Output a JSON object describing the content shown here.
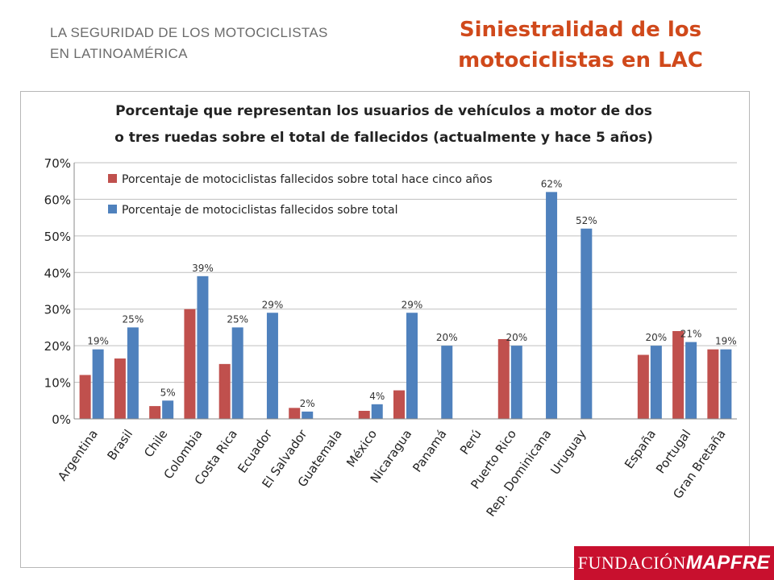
{
  "header": {
    "subtitle_line1": "LA SEGURIDAD DE LOS MOTOCICLISTAS",
    "subtitle_line2": "EN LATINOAMÉRICA",
    "title_line1": "Siniestralidad de los",
    "title_line2": "motociclistas en LAC"
  },
  "logo": {
    "part1": "FUNDACIÓN",
    "part2": "MAPFRE"
  },
  "colors": {
    "red": "#c0504d",
    "blue": "#4f81bd",
    "title": "#d0491b"
  },
  "chart_data": {
    "type": "bar",
    "title_line1": "Porcentaje que representan los usuarios de vehículos a motor de dos",
    "title_line2": "o tres ruedas sobre el total de fallecidos (actualmente y hace 5 años)",
    "xlabel": "",
    "ylabel": "",
    "ylim": [
      0,
      70
    ],
    "yticks": [
      "0%",
      "10%",
      "20%",
      "30%",
      "40%",
      "50%",
      "60%",
      "70%"
    ],
    "grid": true,
    "legend_position": "top-left",
    "categories": [
      "Argentina",
      "Brasil",
      "Chile",
      "Colombia",
      "Costa Rica",
      "Ecuador",
      "El Salvador",
      "Guatemala",
      "México",
      "Nicaragua",
      "Panamá",
      "Perú",
      "Puerto Rico",
      "Rep. Dominicana",
      "Uruguay",
      "",
      "España",
      "Portugal",
      "Gran Bretaña"
    ],
    "series": [
      {
        "name": "Porcentaje de motociclistas fallecidos sobre total hace cinco años",
        "color": "#c0504d",
        "values": [
          12,
          16.5,
          3.5,
          30,
          15,
          null,
          3,
          null,
          2.2,
          7.8,
          null,
          null,
          21.8,
          null,
          null,
          null,
          17.5,
          24,
          19
        ]
      },
      {
        "name": "Porcentaje de motociclistas fallecidos sobre total",
        "color": "#4f81bd",
        "values": [
          19,
          25,
          5,
          39,
          25,
          29,
          2,
          null,
          4,
          29,
          20,
          null,
          20,
          62,
          52,
          null,
          20,
          21,
          19
        ],
        "labels": [
          "19%",
          "25%",
          "5%",
          "39%",
          "25%",
          "29%",
          "2%",
          "",
          "4%",
          "29%",
          "20%",
          "",
          "20%",
          "62%",
          "52%",
          "",
          "20%",
          "21%",
          "19%"
        ]
      }
    ]
  }
}
